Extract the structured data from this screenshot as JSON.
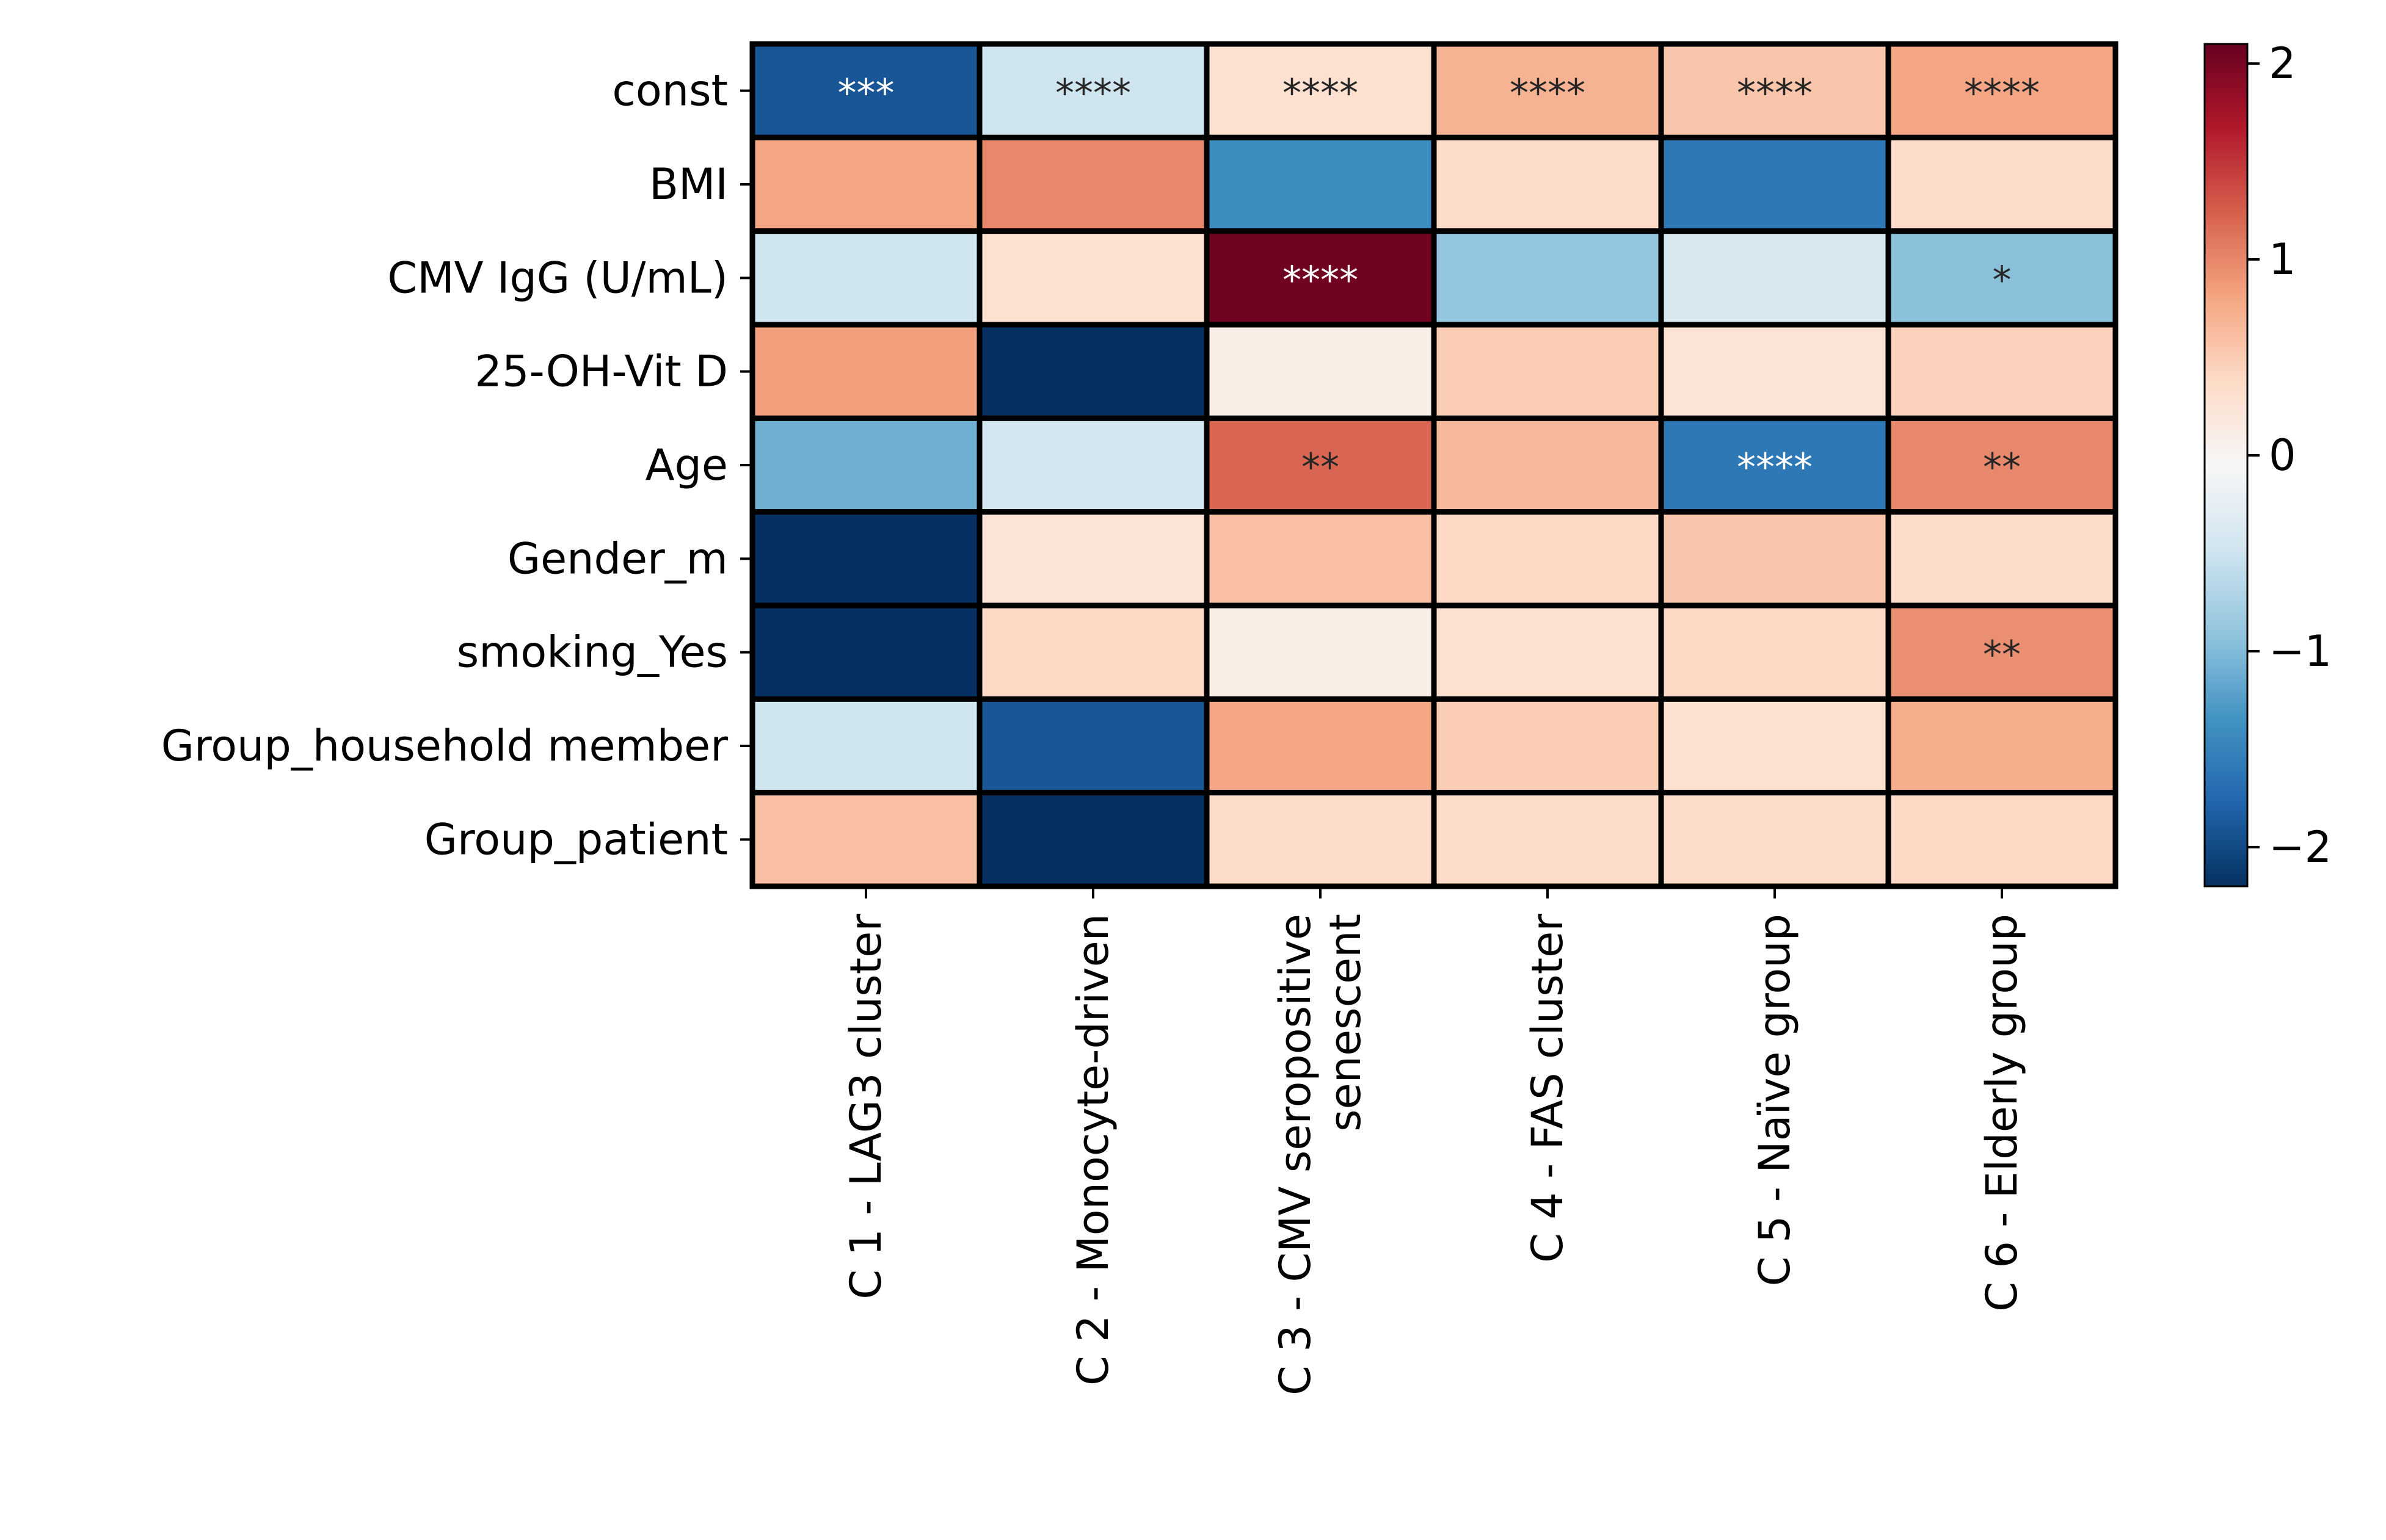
{
  "chart_data": {
    "type": "heatmap",
    "title": "",
    "xlabel": "",
    "ylabel": "",
    "rows": [
      "const",
      "BMI",
      "CMV IgG (U/mL)",
      "25-OH-Vit D",
      "Age",
      "Gender_m",
      "smoking_Yes",
      "Group_household member",
      "Group_patient"
    ],
    "columns": [
      [
        "C 1 - LAG3 cluster"
      ],
      [
        "C 2 - Monocyte-driven"
      ],
      [
        "C 3 - CMV seropositive",
        "senescent"
      ],
      [
        "C 4 - FAS cluster"
      ],
      [
        "C 5 - Naïve group"
      ],
      [
        "C 6 - Elderly group"
      ]
    ],
    "values": [
      [
        -1.9,
        -0.5,
        0.3,
        0.7,
        0.55,
        0.8
      ],
      [
        0.8,
        1.0,
        -1.4,
        0.35,
        -1.6,
        0.35
      ],
      [
        -0.5,
        0.3,
        2.05,
        -0.9,
        -0.4,
        -0.95
      ],
      [
        0.85,
        -2.2,
        0.1,
        0.5,
        0.25,
        0.45
      ],
      [
        -1.1,
        -0.45,
        1.2,
        0.65,
        -1.6,
        1.0
      ],
      [
        -2.2,
        0.25,
        0.6,
        0.4,
        0.55,
        0.35
      ],
      [
        -2.2,
        0.4,
        0.1,
        0.3,
        0.4,
        0.95
      ],
      [
        -0.5,
        -1.9,
        0.8,
        0.5,
        0.3,
        0.75
      ],
      [
        0.6,
        -2.2,
        0.35,
        0.35,
        0.35,
        0.4
      ]
    ],
    "annotations": [
      [
        "***",
        "****",
        "****",
        "****",
        "****",
        "****"
      ],
      [
        "",
        "",
        "",
        "",
        "",
        ""
      ],
      [
        "",
        "",
        "****",
        "",
        "",
        "*"
      ],
      [
        "",
        "",
        "",
        "",
        "",
        ""
      ],
      [
        "",
        "",
        "**",
        "",
        "****",
        "**"
      ],
      [
        "",
        "",
        "",
        "",
        "",
        ""
      ],
      [
        "",
        "",
        "",
        "",
        "",
        "**"
      ],
      [
        "",
        "",
        "",
        "",
        "",
        ""
      ],
      [
        "",
        "",
        "",
        "",
        "",
        ""
      ]
    ],
    "colorbar": {
      "colormap": "RdBu_r",
      "range": [
        -2.2,
        2.1
      ],
      "ticks": [
        -2,
        -1,
        0,
        1,
        2
      ],
      "tick_labels": [
        "−2",
        "−1",
        "0",
        "1",
        "2"
      ],
      "position": "right"
    },
    "grid": false
  }
}
